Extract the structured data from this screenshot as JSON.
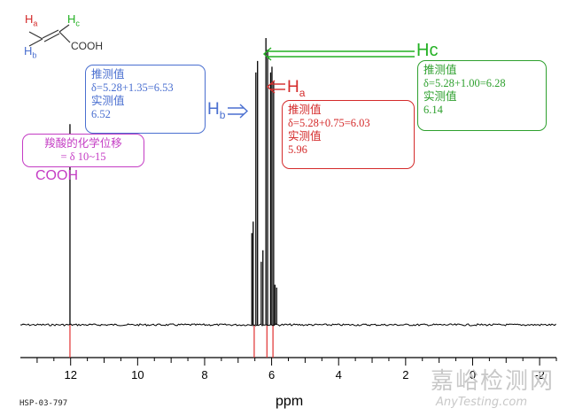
{
  "chart_data": {
    "type": "line",
    "title": "",
    "xlabel": "ppm",
    "ylabel": "",
    "xlim": [
      13.5,
      -2.5
    ],
    "x_reversed": true,
    "x_ticks": [
      "12",
      "10",
      "8",
      "6",
      "4",
      "2",
      "0",
      "-2"
    ],
    "x_tick_values": [
      12,
      10,
      8,
      6,
      4,
      2,
      0,
      -2
    ],
    "peaks": [
      {
        "ppm": 12.02,
        "height": 0.7
      },
      {
        "ppm": 6.59,
        "height": 0.32
      },
      {
        "ppm": 6.55,
        "height": 0.36
      },
      {
        "ppm": 6.47,
        "height": 0.88
      },
      {
        "ppm": 6.42,
        "height": 0.92
      },
      {
        "ppm": 6.31,
        "height": 0.22
      },
      {
        "ppm": 6.26,
        "height": 0.26
      },
      {
        "ppm": 6.17,
        "height": 1.0
      },
      {
        "ppm": 6.12,
        "height": 0.96
      },
      {
        "ppm": 6.03,
        "height": 0.88
      },
      {
        "ppm": 5.99,
        "height": 0.9
      },
      {
        "ppm": 5.94,
        "height": 0.85
      },
      {
        "ppm": 5.9,
        "height": 0.14
      },
      {
        "ppm": 5.85,
        "height": 0.13
      }
    ],
    "marker_lines_ppm": [
      12.02,
      6.52,
      6.14,
      5.96
    ],
    "colors": {
      "marker": "#e03030",
      "spectrum": "#000000"
    }
  },
  "molecule": {
    "ha": "H",
    "ha_sub": "a",
    "hb": "H",
    "hb_sub": "b",
    "hc": "H",
    "hc_sub": "c",
    "group": "COOH"
  },
  "annotations": {
    "hb_label": "H",
    "hb_sub": "b",
    "ha_label": "H",
    "ha_sub": "a",
    "hc_label": "Hc",
    "cooh_label": "COOH",
    "hb_box": [
      "推测值",
      "δ=5.28+1.35=6.53",
      "实测值",
      "6.52"
    ],
    "ha_box": [
      "推测值",
      "δ=5.28+0.75=6.03",
      "实测值",
      "5.96"
    ],
    "hc_box": [
      "推测值",
      "δ=5.28+1.00=6.28",
      "实测值",
      "6.14"
    ],
    "cooh_box": [
      "羧酸的化学位移",
      "= δ 10~15"
    ]
  },
  "footer": {
    "code": "HSP-03-797"
  },
  "watermark": {
    "cn": "嘉峪检测网",
    "en": "AnyTesting.com"
  },
  "colors": {
    "blue": "#4a6fd0",
    "red": "#d42a2a",
    "green": "#2ea02e",
    "magenta": "#c43cc4",
    "hc_green": "#22b022"
  }
}
